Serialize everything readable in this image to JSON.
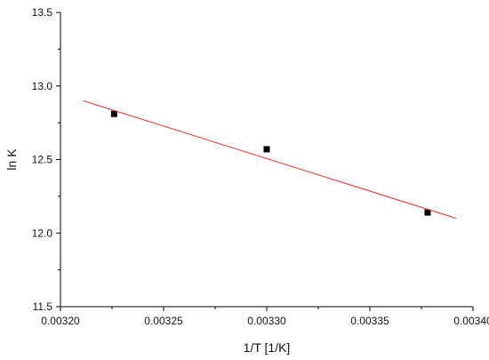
{
  "chart_data": {
    "type": "scatter",
    "title": "",
    "xlabel": "1/T [1/K]",
    "ylabel": "ln K",
    "xlim": [
      0.0032,
      0.0034
    ],
    "ylim": [
      11.5,
      13.5
    ],
    "x_ticks": [
      "0.00320",
      "0.00325",
      "0.00330",
      "0.00335",
      "0.00340"
    ],
    "y_ticks": [
      "11.5",
      "12.0",
      "12.5",
      "13.0",
      "13.5"
    ],
    "grid": false,
    "legend": "none",
    "series": [
      {
        "marker": "square",
        "color": "#000000",
        "points": [
          {
            "x": 0.003226,
            "y": 12.81
          },
          {
            "x": 0.0033,
            "y": 12.57
          },
          {
            "x": 0.003378,
            "y": 12.14
          }
        ]
      },
      {
        "type": "line",
        "style": "linear fit",
        "color": "#e03030",
        "points": [
          {
            "x": 0.003211,
            "y": 12.9
          },
          {
            "x": 0.003392,
            "y": 12.1
          }
        ]
      }
    ]
  }
}
